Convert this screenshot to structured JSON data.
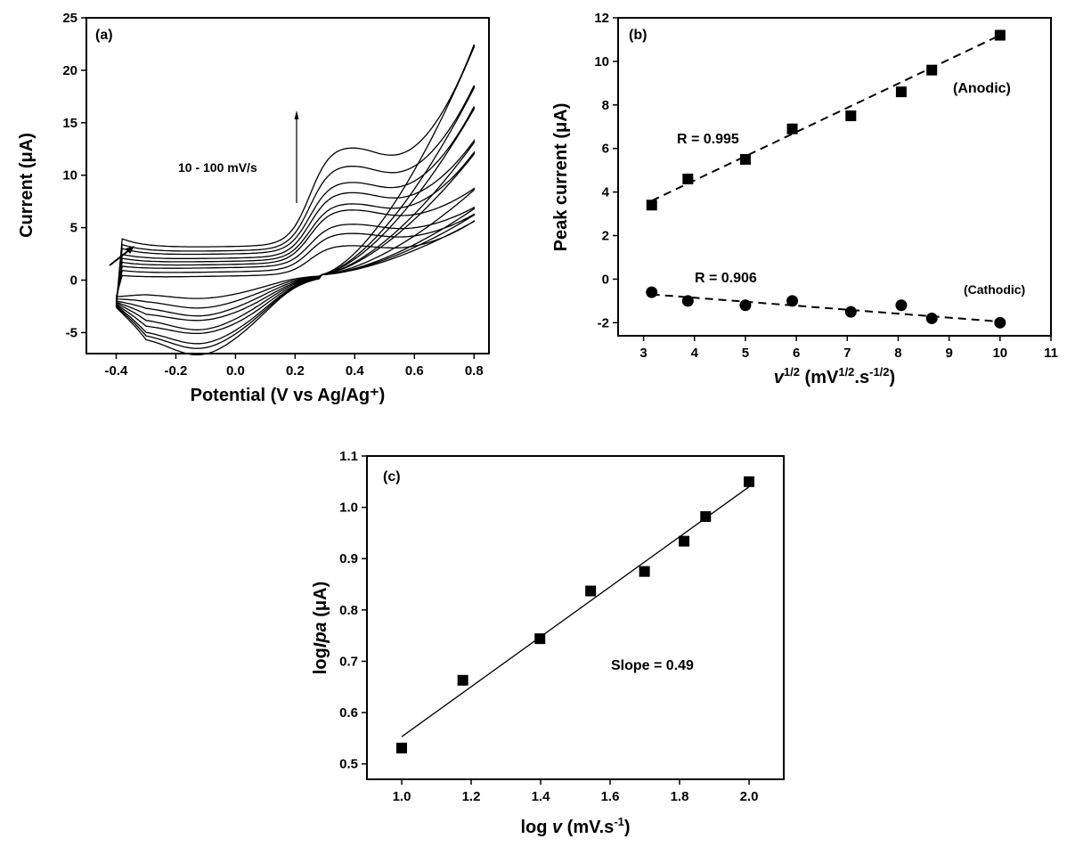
{
  "chart_data": [
    {
      "type": "line",
      "panel_label": "(a)",
      "xlabel": "Potential (V vs Ag/Ag⁺)",
      "ylabel": "Current (μA)",
      "xlim": [
        -0.5,
        0.85
      ],
      "ylim": [
        -7,
        25
      ],
      "xticks": [
        -0.4,
        -0.2,
        0.0,
        0.2,
        0.4,
        0.6,
        0.8
      ],
      "xtick_labels": [
        "-0.4",
        "-0.2",
        "0.0",
        "0.2",
        "0.4",
        "0.6",
        "0.8"
      ],
      "yticks": [
        -5,
        0,
        5,
        10,
        15,
        20,
        25
      ],
      "ytick_labels": [
        "-5",
        "0",
        "5",
        "10",
        "15",
        "20",
        "25"
      ],
      "annotation": "10 - 100 mV/s",
      "series": [
        {
          "ipa": 3.4,
          "ipc": -0.6,
          "start": -1.6,
          "end": 5.6,
          "forward_start": 0.5,
          "ox_left": 0.2,
          "red_base": -1.3
        },
        {
          "ipa": 4.6,
          "ipc": -1.0,
          "start": -1.8,
          "end": 6.2,
          "forward_start": 1.0,
          "ox_left": 0.6,
          "red_base": -1.9
        },
        {
          "ipa": 5.5,
          "ipc": -1.2,
          "start": -2.0,
          "end": 6.8,
          "forward_start": 1.4,
          "ox_left": 1.0,
          "red_base": -2.5
        },
        {
          "ipa": 6.9,
          "ipc": -1.0,
          "start": -2.1,
          "end": 8.6,
          "forward_start": 1.8,
          "ox_left": 1.3,
          "red_base": -3.1
        },
        {
          "ipa": 7.5,
          "ipc": -1.5,
          "start": -2.2,
          "end": 12.0,
          "forward_start": 2.2,
          "ox_left": 1.6,
          "red_base": -3.6
        },
        {
          "ipa": 8.6,
          "ipc": -1.2,
          "start": -2.3,
          "end": 13.1,
          "forward_start": 2.6,
          "ox_left": 1.9,
          "red_base": -4.2
        },
        {
          "ipa": 9.6,
          "ipc": -1.8,
          "start": -2.4,
          "end": 16.3,
          "forward_start": 3.2,
          "ox_left": 2.3,
          "red_base": -4.7
        },
        {
          "ipa": 11.2,
          "ipc": -2.0,
          "start": -2.5,
          "end": 18.3,
          "forward_start": 3.6,
          "ox_left": 2.6,
          "red_base": -5.0
        },
        {
          "ipa": 13.0,
          "ipc": -2.4,
          "start": -2.6,
          "end": 22.2,
          "forward_start": 4.2,
          "ox_left": 3.0,
          "red_base": -5.3
        }
      ]
    },
    {
      "type": "scatter",
      "panel_label": "(b)",
      "xlabel_var": "v",
      "xlabel_sup": "1/2",
      "xlabel_rest": " (mV",
      "xlabel_sup2": "1/2",
      "xlabel_mid": ".s",
      "xlabel_sup3": "-1/2",
      "xlabel_end": ")",
      "ylabel": "Peak current (μA)",
      "xlim": [
        2.5,
        11
      ],
      "ylim": [
        -2.6,
        12
      ],
      "xticks": [
        3,
        4,
        5,
        6,
        7,
        8,
        9,
        10,
        11
      ],
      "xtick_labels": [
        "3",
        "4",
        "5",
        "6",
        "7",
        "8",
        "9",
        "10",
        "11"
      ],
      "yticks": [
        -2,
        0,
        2,
        4,
        6,
        8,
        10,
        12
      ],
      "ytick_labels": [
        "-2",
        "0",
        "2",
        "4",
        "6",
        "8",
        "10",
        "12"
      ],
      "series": [
        {
          "name": "(Anodic)",
          "marker": "square",
          "x": [
            3.16,
            3.87,
            5.0,
            5.92,
            7.07,
            8.06,
            8.66,
            10.0
          ],
          "y": [
            3.4,
            4.6,
            5.5,
            6.9,
            7.5,
            8.6,
            9.6,
            11.2
          ],
          "fit_label": "R = 0.995",
          "fit": [
            [
              3.16,
              3.6
            ],
            [
              10.0,
              11.2
            ]
          ]
        },
        {
          "name": "(Cathodic)",
          "marker": "circle",
          "x": [
            3.16,
            3.87,
            5.0,
            5.92,
            7.07,
            8.06,
            8.66,
            10.0
          ],
          "y": [
            -0.6,
            -1.0,
            -1.2,
            -1.0,
            -1.5,
            -1.2,
            -1.8,
            -2.0
          ],
          "fit_label": "R = 0.906",
          "fit": [
            [
              3.16,
              -0.7
            ],
            [
              10.0,
              -1.95
            ]
          ]
        }
      ]
    },
    {
      "type": "scatter",
      "panel_label": "(c)",
      "xlabel_pre": "log ",
      "xlabel_var": "v",
      "xlabel_rest": " (mV.s",
      "xlabel_sup": "-1",
      "xlabel_end": ")",
      "ylabel_pre": "log",
      "ylabel_var": "Ipa",
      "ylabel_end": " (μA)",
      "xlim": [
        0.9,
        2.1
      ],
      "ylim": [
        0.47,
        1.1
      ],
      "xticks": [
        1.0,
        1.2,
        1.4,
        1.6,
        1.8,
        2.0
      ],
      "xtick_labels": [
        "1.0",
        "1.2",
        "1.4",
        "1.6",
        "1.8",
        "2.0"
      ],
      "yticks": [
        0.5,
        0.6,
        0.7,
        0.8,
        0.9,
        1.0,
        1.1
      ],
      "ytick_labels": [
        "0.5",
        "0.6",
        "0.7",
        "0.8",
        "0.9",
        "1.0",
        "1.1"
      ],
      "annotation": "Slope = 0.49",
      "series": [
        {
          "marker": "square",
          "x": [
            1.0,
            1.176,
            1.398,
            1.544,
            1.699,
            1.813,
            1.875,
            2.0
          ],
          "y": [
            0.531,
            0.663,
            0.744,
            0.837,
            0.875,
            0.934,
            0.982,
            1.05
          ],
          "fit": [
            [
              1.0,
              0.553
            ],
            [
              2.0,
              1.04
            ]
          ]
        }
      ]
    }
  ]
}
